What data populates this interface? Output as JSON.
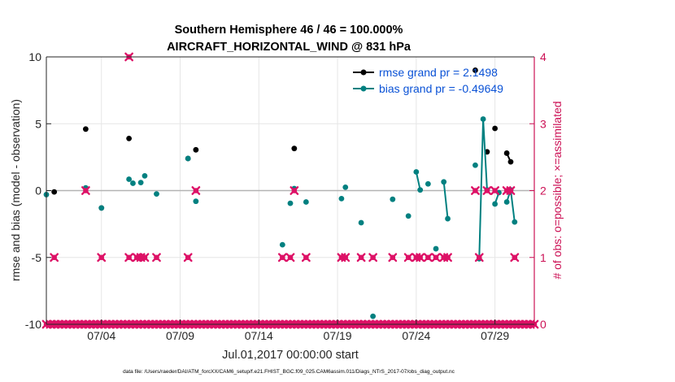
{
  "chart_data": {
    "type": "scatter",
    "title_line1": "Southern Hemisphere 46 / 46 = 100.000%",
    "title_line2": "AIRCRAFT_HORIZONTAL_WIND @ 831 hPa",
    "xlabel": "Jul.01,2017 00:00:00 start",
    "ylabel_left": "rmse and bias (model - observation)",
    "ylabel_right": "# of obs: o=possible; ×=assimilated",
    "footnote": "data file: /Users/raeder/DAI/ATM_forcXX/CAM6_setup/f.e21.FHIST_BGC.f09_025.CAM6assim.011/Diags_NTrS_2017-07/obs_diag_output.nc",
    "x_range": [
      0.5,
      31.5
    ],
    "x_ticks": [
      {
        "value": 4,
        "label": "07/04"
      },
      {
        "value": 9,
        "label": "07/09"
      },
      {
        "value": 14,
        "label": "07/14"
      },
      {
        "value": 19,
        "label": "07/19"
      },
      {
        "value": 24,
        "label": "07/24"
      },
      {
        "value": 29,
        "label": "07/29"
      }
    ],
    "ylim_left": [
      -10,
      10
    ],
    "yticks_left": [
      "-10",
      "-5",
      "0",
      "5",
      "10"
    ],
    "ylim_right": [
      0,
      4
    ],
    "yticks_right": [
      "0",
      "1",
      "2",
      "3",
      "4"
    ],
    "grid": true,
    "legend_position": "top-right",
    "colors": {
      "rmse": "#000000",
      "bias": "#008080",
      "obs": "#dd1166",
      "zero_line": "#b3b3b3",
      "right_axis": "#cc1155",
      "legend_text": "#0a52d6"
    },
    "series": [
      {
        "name": "rmse grand pr = 2.1498",
        "segments": [
          [
            [
              1.0,
              -0.1
            ]
          ],
          [
            [
              3.0,
              4.6
            ]
          ],
          [
            [
              4.0,
              -1.3
            ]
          ],
          [
            [
              5.75,
              3.9
            ]
          ],
          [
            [
              9.5,
              2.4
            ]
          ],
          [
            [
              10.0,
              3.05
            ]
          ],
          [
            [
              16.25,
              3.15
            ]
          ],
          [
            [
              27.75,
              9.0
            ]
          ],
          [
            [
              28.5,
              2.9
            ]
          ],
          [
            [
              29.0,
              4.65
            ]
          ],
          [
            [
              29.75,
              2.8
            ],
            [
              30.0,
              2.15
            ]
          ]
        ]
      },
      {
        "name": "bias grand pr = -0.49649",
        "segments": [
          [
            [
              0.5,
              -0.3
            ]
          ],
          [
            [
              3.0,
              0.2
            ]
          ],
          [
            [
              4.0,
              -1.3
            ]
          ],
          [
            [
              5.75,
              0.85
            ]
          ],
          [
            [
              6.0,
              0.55
            ]
          ],
          [
            [
              6.5,
              0.6
            ]
          ],
          [
            [
              6.75,
              1.1
            ]
          ],
          [
            [
              7.5,
              -0.25
            ]
          ],
          [
            [
              9.5,
              2.4
            ]
          ],
          [
            [
              10.0,
              -0.8
            ]
          ],
          [
            [
              15.5,
              -4.05
            ]
          ],
          [
            [
              16.0,
              -0.95
            ]
          ],
          [
            [
              16.25,
              0.15
            ]
          ],
          [
            [
              17.0,
              -0.85
            ]
          ],
          [
            [
              19.25,
              -0.6
            ]
          ],
          [
            [
              19.5,
              0.25
            ]
          ],
          [
            [
              20.5,
              -2.4
            ]
          ],
          [
            [
              21.25,
              -9.4
            ]
          ],
          [
            [
              22.5,
              -0.65
            ]
          ],
          [
            [
              23.5,
              -1.9
            ]
          ],
          [
            [
              24.0,
              1.4
            ],
            [
              24.25,
              0.05
            ]
          ],
          [
            [
              24.75,
              0.5
            ]
          ],
          [
            [
              25.25,
              -4.35
            ]
          ],
          [
            [
              25.75,
              0.65
            ],
            [
              26.0,
              -2.1
            ]
          ],
          [
            [
              27.75,
              1.9
            ]
          ],
          [
            [
              28.0,
              -5.1
            ],
            [
              28.25,
              5.35
            ],
            [
              28.5,
              0.05
            ]
          ],
          [
            [
              29.0,
              -1.0
            ],
            [
              29.25,
              -0.15
            ]
          ],
          [
            [
              29.75,
              -0.85
            ],
            [
              30.0,
              0.05
            ],
            [
              30.25,
              -2.35
            ]
          ]
        ]
      }
    ],
    "obs_possible": [
      [
        0.5,
        0
      ],
      [
        0.75,
        0
      ],
      [
        1.0,
        0
      ],
      [
        1.25,
        0
      ],
      [
        1.5,
        0
      ],
      [
        1.75,
        0
      ],
      [
        2.0,
        0
      ],
      [
        2.25,
        0
      ],
      [
        2.5,
        0
      ],
      [
        2.75,
        0
      ],
      [
        3.0,
        0
      ],
      [
        3.25,
        0
      ],
      [
        3.5,
        0
      ],
      [
        3.75,
        0
      ],
      [
        4.0,
        0
      ],
      [
        4.25,
        0
      ],
      [
        4.5,
        0
      ],
      [
        4.75,
        0
      ],
      [
        5.0,
        0
      ],
      [
        5.25,
        0
      ],
      [
        5.5,
        0
      ],
      [
        5.75,
        0
      ],
      [
        6.0,
        0
      ],
      [
        6.25,
        0
      ],
      [
        6.5,
        0
      ],
      [
        6.75,
        0
      ],
      [
        7.0,
        0
      ],
      [
        7.25,
        0
      ],
      [
        7.5,
        0
      ],
      [
        7.75,
        0
      ],
      [
        8.0,
        0
      ],
      [
        8.25,
        0
      ],
      [
        8.5,
        0
      ],
      [
        8.75,
        0
      ],
      [
        9.0,
        0
      ],
      [
        9.25,
        0
      ],
      [
        9.5,
        0
      ],
      [
        9.75,
        0
      ],
      [
        10.0,
        0
      ],
      [
        10.25,
        0
      ],
      [
        10.5,
        0
      ],
      [
        10.75,
        0
      ],
      [
        11.0,
        0
      ],
      [
        11.25,
        0
      ],
      [
        11.5,
        0
      ],
      [
        11.75,
        0
      ],
      [
        12.0,
        0
      ],
      [
        12.25,
        0
      ],
      [
        12.5,
        0
      ],
      [
        12.75,
        0
      ],
      [
        13.0,
        0
      ],
      [
        13.25,
        0
      ],
      [
        13.5,
        0
      ],
      [
        13.75,
        0
      ],
      [
        14.0,
        0
      ],
      [
        14.25,
        0
      ],
      [
        14.5,
        0
      ],
      [
        14.75,
        0
      ],
      [
        15.0,
        0
      ],
      [
        15.25,
        0
      ],
      [
        15.5,
        0
      ],
      [
        15.75,
        0
      ],
      [
        16.0,
        0
      ],
      [
        16.25,
        0
      ],
      [
        16.5,
        0
      ],
      [
        16.75,
        0
      ],
      [
        17.0,
        0
      ],
      [
        17.25,
        0
      ],
      [
        17.5,
        0
      ],
      [
        17.75,
        0
      ],
      [
        18.0,
        0
      ],
      [
        18.25,
        0
      ],
      [
        18.5,
        0
      ],
      [
        18.75,
        0
      ],
      [
        19.0,
        0
      ],
      [
        19.25,
        0
      ],
      [
        19.5,
        0
      ],
      [
        19.75,
        0
      ],
      [
        20.0,
        0
      ],
      [
        20.25,
        0
      ],
      [
        20.5,
        0
      ],
      [
        20.75,
        0
      ],
      [
        21.0,
        0
      ],
      [
        21.25,
        0
      ],
      [
        21.5,
        0
      ],
      [
        21.75,
        0
      ],
      [
        22.0,
        0
      ],
      [
        22.25,
        0
      ],
      [
        22.5,
        0
      ],
      [
        22.75,
        0
      ],
      [
        23.0,
        0
      ],
      [
        23.25,
        0
      ],
      [
        23.5,
        0
      ],
      [
        23.75,
        0
      ],
      [
        24.0,
        0
      ],
      [
        24.25,
        0
      ],
      [
        24.5,
        0
      ],
      [
        24.75,
        0
      ],
      [
        25.0,
        0
      ],
      [
        25.25,
        0
      ],
      [
        25.5,
        0
      ],
      [
        25.75,
        0
      ],
      [
        26.0,
        0
      ],
      [
        26.25,
        0
      ],
      [
        26.5,
        0
      ],
      [
        26.75,
        0
      ],
      [
        27.0,
        0
      ],
      [
        27.25,
        0
      ],
      [
        27.5,
        0
      ],
      [
        27.75,
        0
      ],
      [
        28.0,
        0
      ],
      [
        28.25,
        0
      ],
      [
        28.5,
        0
      ],
      [
        28.75,
        0
      ],
      [
        29.0,
        0
      ],
      [
        29.25,
        0
      ],
      [
        29.5,
        0
      ],
      [
        29.75,
        0
      ],
      [
        30.0,
        0
      ],
      [
        30.25,
        0
      ],
      [
        30.5,
        0
      ],
      [
        30.75,
        0
      ],
      [
        31.0,
        0
      ],
      [
        31.25,
        0
      ],
      [
        31.5,
        0
      ],
      [
        1.0,
        1
      ],
      [
        4.0,
        1
      ],
      [
        5.75,
        1
      ],
      [
        6.25,
        1
      ],
      [
        6.5,
        1
      ],
      [
        6.75,
        1
      ],
      [
        7.5,
        1
      ],
      [
        9.5,
        1
      ],
      [
        15.5,
        1
      ],
      [
        16.0,
        1
      ],
      [
        17.0,
        1
      ],
      [
        19.25,
        1
      ],
      [
        19.5,
        1
      ],
      [
        20.5,
        1
      ],
      [
        21.25,
        1
      ],
      [
        22.5,
        1
      ],
      [
        23.5,
        1
      ],
      [
        24.0,
        1
      ],
      [
        24.25,
        1
      ],
      [
        24.75,
        1
      ],
      [
        25.25,
        1
      ],
      [
        25.75,
        1
      ],
      [
        26.0,
        1
      ],
      [
        28.0,
        1
      ],
      [
        30.25,
        1
      ],
      [
        3.0,
        2
      ],
      [
        10.0,
        2
      ],
      [
        16.25,
        2
      ],
      [
        27.75,
        2
      ],
      [
        28.5,
        2
      ],
      [
        29.0,
        2
      ],
      [
        29.75,
        2
      ],
      [
        30.0,
        2
      ],
      [
        5.75,
        4
      ]
    ]
  }
}
